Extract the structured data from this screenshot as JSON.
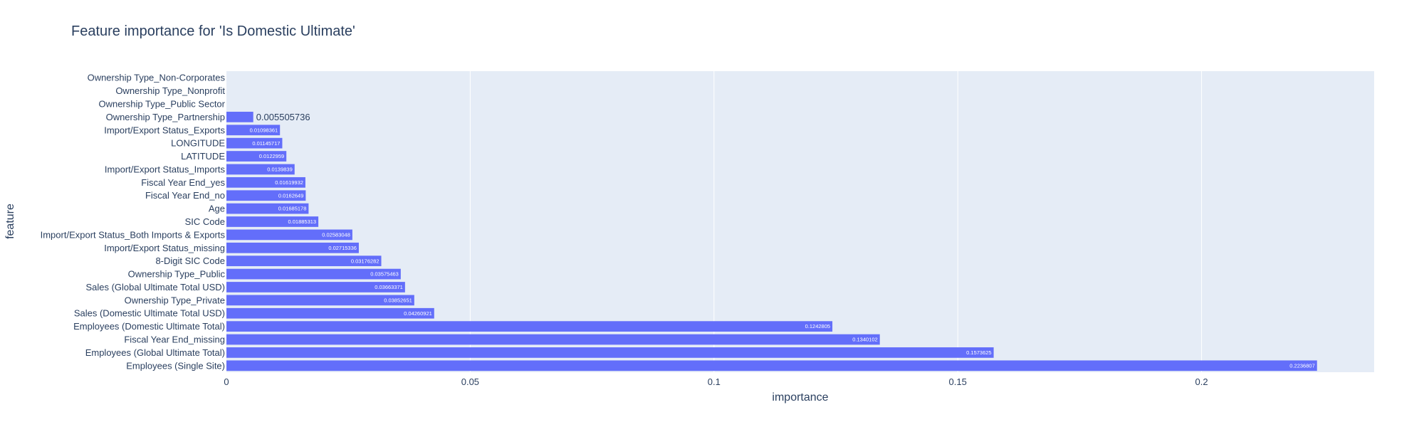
{
  "chart_data": {
    "type": "bar",
    "orientation": "horizontal",
    "title": "Feature importance for 'Is Domestic Ultimate'",
    "xlabel": "importance",
    "ylabel": "feature",
    "xlim": [
      0,
      0.2354
    ],
    "xticks": [
      0,
      0.05,
      0.1,
      0.15,
      0.2
    ],
    "xtick_labels": [
      "0",
      "0.05",
      "0.1",
      "0.15",
      "0.2"
    ],
    "grid": true,
    "legend": "none",
    "colors": {
      "bar": "#636efa",
      "plot_bg": "#e5ecf6",
      "grid": "#ffffff",
      "text": "#2a3f5f"
    },
    "categories": [
      "Ownership Type_Non-Corporates",
      "Ownership Type_Nonprofit",
      "Ownership Type_Public Sector",
      "Ownership Type_Partnership",
      "Import/Export Status_Exports",
      "LONGITUDE",
      "LATITUDE",
      "Import/Export Status_Imports",
      "Fiscal Year End_yes",
      "Fiscal Year End_no",
      "Age",
      "SIC Code",
      "Import/Export Status_Both Imports & Exports",
      "Import/Export Status_missing",
      "8-Digit SIC Code",
      "Ownership Type_Public",
      "Sales (Global Ultimate Total USD)",
      "Ownership Type_Private",
      "Sales (Domestic Ultimate Total USD)",
      "Employees (Domestic Ultimate Total)",
      "Fiscal Year End_missing",
      "Employees (Global Ultimate Total)",
      "Employees (Single Site)"
    ],
    "values": [
      0,
      0,
      0,
      0.005505736,
      0.01098361,
      0.01145717,
      0.0122959,
      0.0139839,
      0.01619932,
      0.0162649,
      0.01685178,
      0.01885313,
      0.02583048,
      0.02715336,
      0.03176282,
      0.03575463,
      0.03663371,
      0.03852651,
      0.04260921,
      0.1242805,
      0.1340102,
      0.1573625,
      0.2236807
    ],
    "data_labels": [
      "",
      "",
      "",
      "0.005505736",
      "0.01098361",
      "0.01145717",
      "0.0122959",
      "0.0139839",
      "0.01619932",
      "0.0162649",
      "0.01685178",
      "0.01885313",
      "0.02583048",
      "0.02715336",
      "0.03176282",
      "0.03575463",
      "0.03663371",
      "0.03852651",
      "0.04260921",
      "0.1242805",
      "0.1340102",
      "0.1573625",
      "0.2236807"
    ]
  }
}
